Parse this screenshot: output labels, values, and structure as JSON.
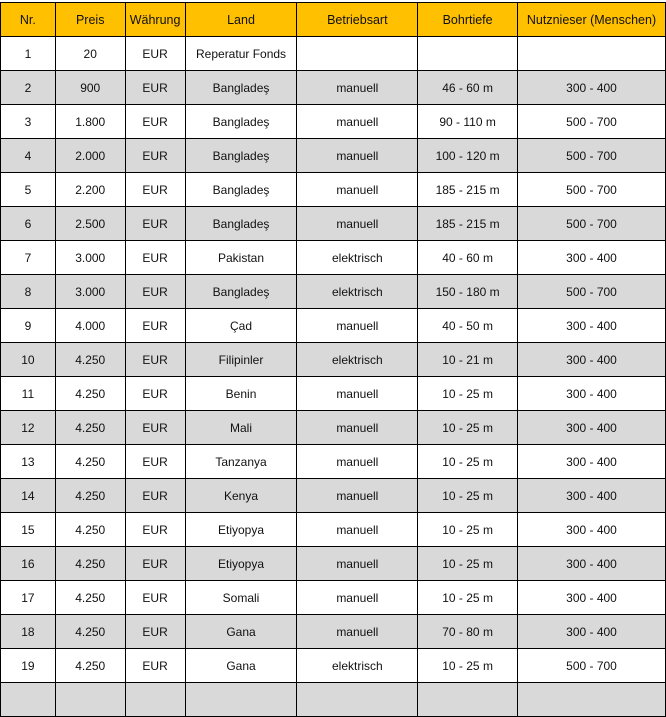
{
  "colors": {
    "header": "#FFC000",
    "alt_row": "#D9D9D9",
    "border": "#000000"
  },
  "columns": [
    "Nr.",
    "Preis",
    "Währung",
    "Land",
    "Betriebsart",
    "Bohrtiefe",
    "Nutznieser (Menschen)"
  ],
  "rows": [
    [
      "1",
      "20",
      "EUR",
      "Reperatur Fonds",
      "",
      "",
      ""
    ],
    [
      "2",
      "900",
      "EUR",
      "Bangladeş",
      "manuell",
      "46 - 60 m",
      "300 - 400"
    ],
    [
      "3",
      "1.800",
      "EUR",
      "Bangladeş",
      "manuell",
      "90 - 110 m",
      "500 - 700"
    ],
    [
      "4",
      "2.000",
      "EUR",
      "Bangladeş",
      "manuell",
      "100 - 120 m",
      "500 - 700"
    ],
    [
      "5",
      "2.200",
      "EUR",
      "Bangladeş",
      "manuell",
      "185 - 215 m",
      "500 - 700"
    ],
    [
      "6",
      "2.500",
      "EUR",
      "Bangladeş",
      "manuell",
      "185 - 215 m",
      "500 - 700"
    ],
    [
      "7",
      "3.000",
      "EUR",
      "Pakistan",
      "elektrisch",
      "40 - 60 m",
      "300 - 400"
    ],
    [
      "8",
      "3.000",
      "EUR",
      "Bangladeş",
      "elektrisch",
      "150 - 180 m",
      "500 - 700"
    ],
    [
      "9",
      "4.000",
      "EUR",
      "Çad",
      "manuell",
      "40 - 50 m",
      "300 - 400"
    ],
    [
      "10",
      "4.250",
      "EUR",
      "Filipinler",
      "elektrisch",
      "10 - 21 m",
      "300 - 400"
    ],
    [
      "11",
      "4.250",
      "EUR",
      "Benin",
      "manuell",
      "10 - 25 m",
      "300 - 400"
    ],
    [
      "12",
      "4.250",
      "EUR",
      "Mali",
      "manuell",
      "10 - 25 m",
      "300 - 400"
    ],
    [
      "13",
      "4.250",
      "EUR",
      "Tanzanya",
      "manuell",
      "10 - 25 m",
      "300 - 400"
    ],
    [
      "14",
      "4.250",
      "EUR",
      "Kenya",
      "manuell",
      "10 - 25 m",
      "300 - 400"
    ],
    [
      "15",
      "4.250",
      "EUR",
      "Etiyopya",
      "manuell",
      "10 - 25 m",
      "300 - 400"
    ],
    [
      "16",
      "4.250",
      "EUR",
      "Etiyopya",
      "manuell",
      "10 - 25 m",
      "300 - 400"
    ],
    [
      "17",
      "4.250",
      "EUR",
      "Somali",
      "manuell",
      "10 - 25 m",
      "300 - 400"
    ],
    [
      "18",
      "4.250",
      "EUR",
      "Gana",
      "manuell",
      "70 - 80 m",
      "300 - 400"
    ],
    [
      "19",
      "4.250",
      "EUR",
      "Gana",
      "elektrisch",
      "10 - 25 m",
      "500 - 700"
    ],
    [
      "",
      "",
      "",
      "",
      "",
      "",
      ""
    ]
  ]
}
